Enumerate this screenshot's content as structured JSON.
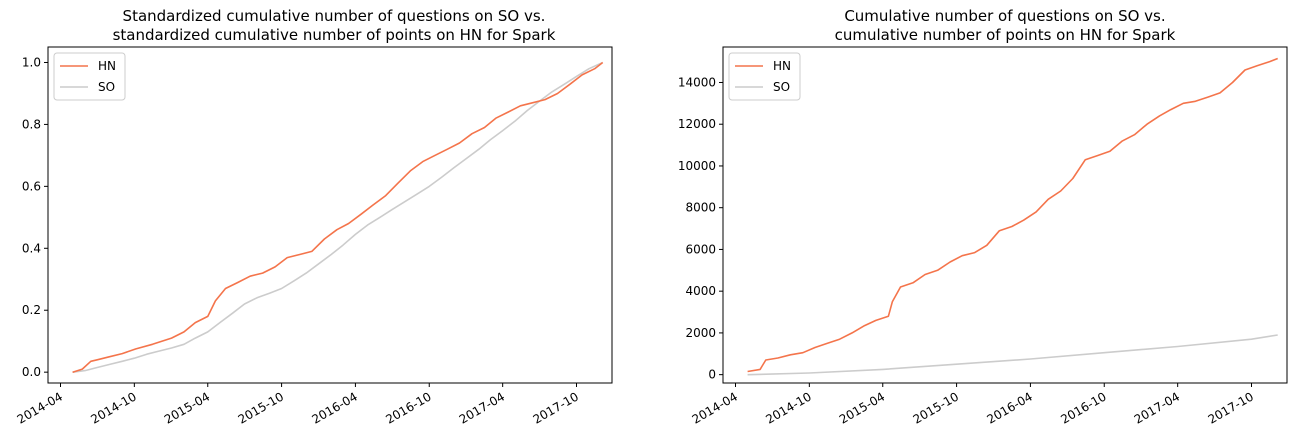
{
  "chart_data": [
    {
      "type": "line",
      "title_lines": [
        "Standardized cumulative number of questions on SO vs.",
        "standardized cumulative number of points on HN for Spark"
      ],
      "xlabel": "",
      "ylabel": "",
      "ylim": [
        -0.035,
        1.05
      ],
      "xlim": [
        "2014-03-01",
        "2017-12-28"
      ],
      "yticks": [
        0.0,
        0.2,
        0.4,
        0.6,
        0.8,
        1.0
      ],
      "ytick_labels": [
        "0.0",
        "0.2",
        "0.4",
        "0.6",
        "0.8",
        "1.0"
      ],
      "xticks": [
        "2014-04-01",
        "2014-10-01",
        "2015-04-01",
        "2015-10-01",
        "2016-04-01",
        "2016-10-01",
        "2017-04-01",
        "2017-10-01"
      ],
      "xtick_labels": [
        "2014-04",
        "2014-10",
        "2015-04",
        "2015-10",
        "2016-04",
        "2016-10",
        "2017-04",
        "2017-10"
      ],
      "grid": false,
      "legend_position": "top-left",
      "series": [
        {
          "name": "HN",
          "color": "#f4744b",
          "x": [
            "2014-05-01",
            "2014-05-25",
            "2014-06-15",
            "2014-07-01",
            "2014-08-01",
            "2014-09-01",
            "2014-10-05",
            "2014-11-15",
            "2015-01-01",
            "2015-02-01",
            "2015-03-01",
            "2015-04-01",
            "2015-04-20",
            "2015-05-15",
            "2015-06-15",
            "2015-07-15",
            "2015-08-15",
            "2015-09-15",
            "2015-10-15",
            "2015-11-15",
            "2015-12-15",
            "2016-01-15",
            "2016-02-15",
            "2016-03-15",
            "2016-04-15",
            "2016-05-15",
            "2016-06-15",
            "2016-07-15",
            "2016-08-15",
            "2016-09-15",
            "2016-10-15",
            "2016-11-15",
            "2016-12-15",
            "2017-01-15",
            "2017-02-15",
            "2017-03-15",
            "2017-04-15",
            "2017-05-15",
            "2017-06-15",
            "2017-07-15",
            "2017-08-15",
            "2017-09-15",
            "2017-10-15",
            "2017-11-15",
            "2017-12-05"
          ],
          "values": [
            0.0,
            0.01,
            0.035,
            0.04,
            0.05,
            0.06,
            0.075,
            0.09,
            0.11,
            0.13,
            0.16,
            0.18,
            0.23,
            0.27,
            0.29,
            0.31,
            0.32,
            0.34,
            0.37,
            0.38,
            0.39,
            0.43,
            0.46,
            0.48,
            0.51,
            0.54,
            0.57,
            0.61,
            0.65,
            0.68,
            0.7,
            0.72,
            0.74,
            0.77,
            0.79,
            0.82,
            0.84,
            0.86,
            0.87,
            0.88,
            0.9,
            0.93,
            0.96,
            0.98,
            1.0
          ]
        },
        {
          "name": "SO",
          "color": "#cccccc",
          "x": [
            "2014-05-01",
            "2014-06-01",
            "2014-07-01",
            "2014-08-01",
            "2014-09-01",
            "2014-10-01",
            "2014-11-01",
            "2014-12-01",
            "2015-01-01",
            "2015-02-01",
            "2015-03-01",
            "2015-04-01",
            "2015-05-01",
            "2015-06-01",
            "2015-07-01",
            "2015-08-01",
            "2015-09-01",
            "2015-10-01",
            "2015-11-01",
            "2015-12-01",
            "2016-01-01",
            "2016-02-01",
            "2016-03-01",
            "2016-04-01",
            "2016-05-01",
            "2016-06-01",
            "2016-07-01",
            "2016-08-01",
            "2016-09-01",
            "2016-10-01",
            "2016-11-01",
            "2016-12-01",
            "2017-01-01",
            "2017-02-01",
            "2017-03-01",
            "2017-04-01",
            "2017-05-01",
            "2017-06-01",
            "2017-07-01",
            "2017-08-01",
            "2017-09-01",
            "2017-10-01",
            "2017-11-01",
            "2017-12-05"
          ],
          "values": [
            0.0,
            0.005,
            0.015,
            0.025,
            0.035,
            0.045,
            0.058,
            0.068,
            0.078,
            0.09,
            0.11,
            0.13,
            0.16,
            0.19,
            0.22,
            0.24,
            0.255,
            0.27,
            0.295,
            0.32,
            0.35,
            0.38,
            0.41,
            0.445,
            0.475,
            0.5,
            0.525,
            0.55,
            0.575,
            0.6,
            0.63,
            0.66,
            0.69,
            0.72,
            0.75,
            0.78,
            0.81,
            0.845,
            0.875,
            0.905,
            0.93,
            0.955,
            0.98,
            1.0
          ]
        }
      ]
    },
    {
      "type": "line",
      "title_lines": [
        "Cumulative number of questions on SO vs.",
        "cumulative number of points on HN for Spark"
      ],
      "xlabel": "",
      "ylabel": "",
      "ylim": [
        -400,
        15700
      ],
      "xlim": [
        "2014-03-01",
        "2017-12-28"
      ],
      "yticks": [
        0,
        2000,
        4000,
        6000,
        8000,
        10000,
        12000,
        14000
      ],
      "ytick_labels": [
        "0",
        "2000",
        "4000",
        "6000",
        "8000",
        "10000",
        "12000",
        "14000"
      ],
      "xticks": [
        "2014-04-01",
        "2014-10-01",
        "2015-04-01",
        "2015-10-01",
        "2016-04-01",
        "2016-10-01",
        "2017-04-01",
        "2017-10-01"
      ],
      "xtick_labels": [
        "2014-04",
        "2014-10",
        "2015-04",
        "2015-10",
        "2016-04",
        "2016-10",
        "2017-04",
        "2017-10"
      ],
      "grid": false,
      "legend_position": "top-left",
      "series": [
        {
          "name": "HN",
          "color": "#f4744b",
          "x": [
            "2014-05-01",
            "2014-06-01",
            "2014-06-15",
            "2014-07-15",
            "2014-08-15",
            "2014-09-15",
            "2014-10-15",
            "2014-11-15",
            "2014-12-15",
            "2015-01-15",
            "2015-02-15",
            "2015-03-15",
            "2015-04-15",
            "2015-04-25",
            "2015-05-15",
            "2015-06-15",
            "2015-07-15",
            "2015-08-15",
            "2015-09-15",
            "2015-10-15",
            "2015-11-15",
            "2015-12-15",
            "2016-01-15",
            "2016-02-15",
            "2016-03-15",
            "2016-04-15",
            "2016-05-15",
            "2016-06-15",
            "2016-07-15",
            "2016-08-15",
            "2016-09-15",
            "2016-10-15",
            "2016-11-15",
            "2016-12-15",
            "2017-01-15",
            "2017-02-15",
            "2017-03-15",
            "2017-04-15",
            "2017-05-15",
            "2017-06-15",
            "2017-07-15",
            "2017-08-15",
            "2017-09-15",
            "2017-10-15",
            "2017-11-15",
            "2017-12-05"
          ],
          "values": [
            150,
            250,
            700,
            800,
            950,
            1050,
            1300,
            1500,
            1700,
            2000,
            2350,
            2600,
            2800,
            3500,
            4200,
            4400,
            4800,
            5000,
            5400,
            5700,
            5850,
            6200,
            6900,
            7100,
            7400,
            7800,
            8400,
            8800,
            9400,
            10300,
            10500,
            10700,
            11200,
            11500,
            12000,
            12400,
            12700,
            13000,
            13100,
            13300,
            13500,
            14000,
            14600,
            14800,
            15000,
            15150
          ]
        },
        {
          "name": "SO",
          "color": "#cccccc",
          "x": [
            "2014-05-01",
            "2014-10-01",
            "2015-04-01",
            "2015-10-01",
            "2016-04-01",
            "2016-10-01",
            "2017-04-01",
            "2017-10-01",
            "2017-12-05"
          ],
          "values": [
            0,
            80,
            250,
            500,
            750,
            1050,
            1350,
            1700,
            1900
          ]
        }
      ]
    }
  ]
}
